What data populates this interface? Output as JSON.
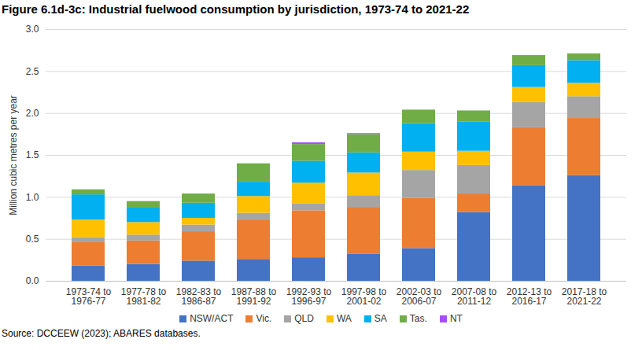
{
  "chart_data": {
    "type": "bar",
    "title": "Figure 6.1d-3c: Industrial fuelwood consumption by jurisdiction, 1973-74 to 2021-22",
    "caption": "Source: DCCEEW (2023); ABARES databases.",
    "y_label": "Million cubic metres per year",
    "stacked": true,
    "grid": true,
    "legend": "bottom",
    "categories": [
      "1973-74 to 1976-77",
      "1977-78 to 1981-82",
      "1982-83 to 1986-87",
      "1987-88 to 1991-92",
      "1992-93 to 1996-97",
      "1997-98 to 2001-02",
      "2002-03 to 2006-07",
      "2007-08 to 2011-12",
      "2012-13 to 2016-17",
      "2017-18 to 2021-22"
    ],
    "series": [
      {
        "name": "NSW/ACT",
        "color": "#4472C4",
        "values": [
          0.18,
          0.2,
          0.24,
          0.26,
          0.28,
          0.32,
          0.39,
          0.82,
          1.14,
          1.26
        ]
      },
      {
        "name": "Vic.",
        "color": "#ED7D31",
        "values": [
          0.28,
          0.28,
          0.35,
          0.47,
          0.56,
          0.56,
          0.6,
          0.22,
          0.69,
          0.68
        ]
      },
      {
        "name": "QLD",
        "color": "#A5A5A5",
        "values": [
          0.06,
          0.07,
          0.08,
          0.08,
          0.08,
          0.14,
          0.33,
          0.34,
          0.3,
          0.26
        ]
      },
      {
        "name": "WA",
        "color": "#FFC000",
        "values": [
          0.21,
          0.15,
          0.08,
          0.2,
          0.25,
          0.27,
          0.22,
          0.17,
          0.18,
          0.16
        ]
      },
      {
        "name": "SA",
        "color": "#00B0F0",
        "values": [
          0.3,
          0.18,
          0.18,
          0.17,
          0.26,
          0.24,
          0.34,
          0.35,
          0.26,
          0.27
        ]
      },
      {
        "name": "Tas.",
        "color": "#70AD47",
        "values": [
          0.06,
          0.07,
          0.11,
          0.22,
          0.2,
          0.22,
          0.16,
          0.13,
          0.12,
          0.08
        ]
      },
      {
        "name": "NT",
        "color": "#A64DFF",
        "values": [
          0,
          0,
          0,
          0,
          0.02,
          0.01,
          0,
          0,
          0,
          0
        ]
      }
    ],
    "ylim": [
      0,
      3
    ],
    "yticks": [
      {
        "value": 0,
        "label": "0.0"
      },
      0.5,
      {
        "value": 1,
        "label": "1.0"
      },
      1.5,
      {
        "value": 2,
        "label": "2.0"
      },
      2.5,
      {
        "value": 3,
        "label": "3.0"
      }
    ]
  }
}
